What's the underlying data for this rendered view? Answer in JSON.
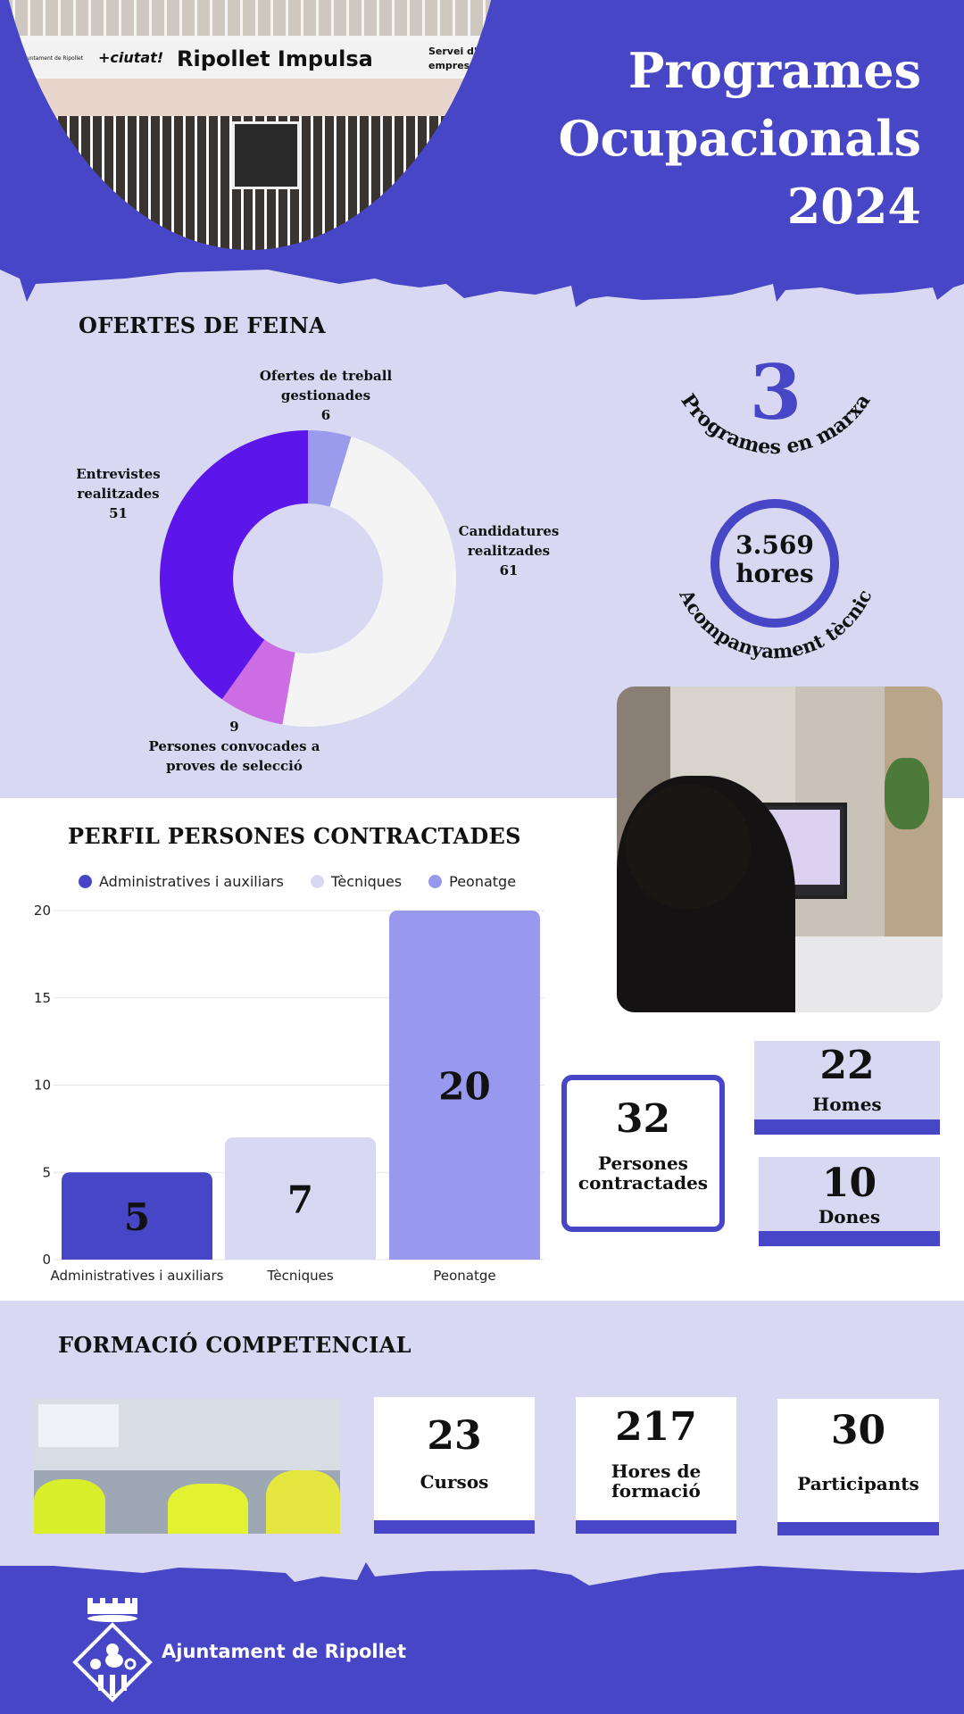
{
  "header": {
    "title_lines": [
      "Programes",
      "Ocupacionals",
      "2024"
    ],
    "photo_sign": {
      "name": "Ripollet Impulsa",
      "left_text": "Ajuntament de Ripollet",
      "slogan": "+ciutat!",
      "right_text_1": "Servei d'o",
      "right_text_2": "empresa"
    }
  },
  "colors": {
    "brand_blue": "#4646c6",
    "lavender": "#d9d8f2",
    "peonatge": "#9898ee",
    "entrevistes": "#5c16ea",
    "persones_convocades": "#cc6de3",
    "candidatures": "#f4f4f4",
    "ofertes": "#9b9bee"
  },
  "ofertes": {
    "title": "OFERTES DE FEINA",
    "programes": {
      "value": "3",
      "label": "Programes en marxa"
    },
    "hores": {
      "value": "3.569",
      "unit": "hores",
      "label": "Acompanyament tècnic"
    }
  },
  "perfil": {
    "title": "PERFIL PERSONES CONTRACTADES"
  },
  "contractades": {
    "total": {
      "value": "32",
      "label_1": "Persones",
      "label_2": "contractades"
    },
    "homes": {
      "value": "22",
      "label": "Homes"
    },
    "dones": {
      "value": "10",
      "label": "Dones"
    }
  },
  "formacio": {
    "title": "FORMACIÓ COMPETENCIAL",
    "cards": [
      {
        "value": "23",
        "label_1": "Cursos",
        "label_2": ""
      },
      {
        "value": "217",
        "label_1": "Hores de",
        "label_2": "formació"
      },
      {
        "value": "30",
        "label_1": "Participants",
        "label_2": ""
      }
    ]
  },
  "footer": {
    "logo_text": "Ajuntament de Ripollet"
  },
  "chart_data": [
    {
      "type": "pie",
      "donut": true,
      "slices": [
        {
          "label_1": "Ofertes de treball",
          "label_2": "gestionades",
          "value": 6,
          "color": "#9b9bee"
        },
        {
          "label_1": "Candidatures",
          "label_2": "realitzades",
          "value": 61,
          "color": "#f4f4f4"
        },
        {
          "label_1": "Persones convocades a",
          "label_2": "proves de selecció",
          "value": 9,
          "color": "#cc6de3"
        },
        {
          "label_1": "Entrevistes",
          "label_2": "realitzades",
          "value": 51,
          "color": "#5c16ea"
        }
      ]
    },
    {
      "type": "bar",
      "categories": [
        "Administratives i auxiliars",
        "Tècniques",
        "Peonatge"
      ],
      "values": [
        5,
        7,
        20
      ],
      "colors": [
        "#4646c6",
        "#d9d8f2",
        "#9898ee"
      ],
      "legend": [
        "Administratives i auxiliars",
        "Tècniques",
        "Peonatge"
      ],
      "legend_position": "top",
      "ylim": [
        0,
        20
      ],
      "yticks": [
        0,
        5,
        10,
        15,
        20
      ],
      "grid": true,
      "data_labels": true
    }
  ]
}
